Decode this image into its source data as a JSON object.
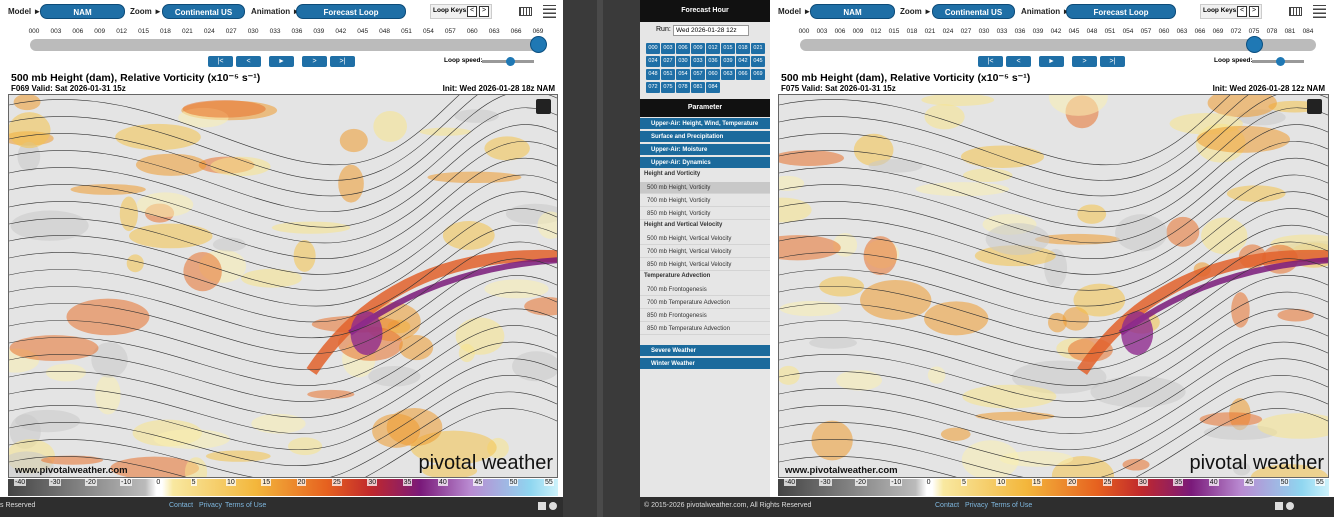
{
  "left": {
    "toolbar": {
      "model_label": "Model ►",
      "model": "NAM",
      "zoom_label": "Zoom ►",
      "zoom": "Continental US",
      "animation_label": "Animation ►",
      "animation": "Forecast Loop",
      "loop_keys": "Loop Keys:",
      "key_prev": "<",
      "key_next": ">"
    },
    "hours": [
      "000",
      "003",
      "006",
      "009",
      "012",
      "015",
      "018",
      "021",
      "024",
      "027",
      "030",
      "033",
      "036",
      "039",
      "042",
      "045",
      "048",
      "051",
      "054",
      "057",
      "060",
      "063",
      "066",
      "069"
    ],
    "selected_hour": "069",
    "buttons": [
      "|<",
      "<",
      "►",
      ">",
      ">|"
    ],
    "loop_speed": "Loop speed:",
    "title": "500 mb Height (dam), Relative Vorticity (x10⁻⁵ s⁻¹)",
    "valid": "F069 Valid: Sat 2026-01-31 15z",
    "init": "Init: Wed 2026-01-28 18z NAM",
    "site": "www.pivotalweather.com",
    "brand": "pivotal weather",
    "colorbar": [
      -40,
      -30,
      -20,
      -10,
      0,
      5,
      10,
      15,
      20,
      25,
      30,
      35,
      40,
      45,
      50,
      55
    ],
    "footer": {
      "copyright": "s Reserved",
      "links": [
        "Contact",
        "Privacy",
        "Terms of Use"
      ]
    }
  },
  "right": {
    "toolbar": {
      "model_label": "Model ►",
      "model": "NAM",
      "zoom_label": "Zoom ►",
      "zoom": "Continental US",
      "animation_label": "Animation ►",
      "animation": "Forecast Loop",
      "loop_keys": "Loop Keys:",
      "key_prev": "<",
      "key_next": ">"
    },
    "hours": [
      "000",
      "003",
      "006",
      "009",
      "012",
      "015",
      "018",
      "021",
      "024",
      "027",
      "030",
      "033",
      "036",
      "039",
      "042",
      "045",
      "048",
      "051",
      "054",
      "057",
      "060",
      "063",
      "066",
      "069",
      "072",
      "075",
      "078",
      "081",
      "084"
    ],
    "selected_hour": "075",
    "buttons": [
      "|<",
      "<",
      "►",
      ">",
      ">|"
    ],
    "loop_speed": "Loop speed:",
    "title": "500 mb Height (dam), Relative Vorticity (x10⁻⁵ s⁻¹)",
    "valid": "F075 Valid: Sat 2026-01-31 15z",
    "init": "Init: Wed 2026-01-28 12z NAM",
    "site": "www.pivotalweather.com",
    "brand": "pivotal weather",
    "colorbar": [
      -40,
      -30,
      -20,
      -10,
      0,
      5,
      10,
      15,
      20,
      25,
      30,
      35,
      40,
      45,
      50,
      55
    ],
    "footer": {
      "copyright": "© 2015-2026 pivotalweather.com, All Rights Reserved",
      "links": [
        "Contact",
        "Privacy",
        "Terms of Use"
      ]
    },
    "sidebar": {
      "forecast_hour": "Forecast Hour",
      "run_label": "Run:",
      "run": "Wed 2026-01-28 12z",
      "parameter": "Parameter",
      "sections": [
        "Upper-Air: Height, Wind, Temperature",
        "Surface and Precipitation",
        "Upper-Air: Moisture",
        "Upper-Air: Dynamics"
      ],
      "groups": [
        {
          "name": "Height and Vorticity",
          "items": [
            "500 mb Height, Vorticity",
            "700 mb Height, Vorticity",
            "850 mb Height, Vorticity"
          ]
        },
        {
          "name": "Height and Vertical Velocity",
          "items": [
            "500 mb Height, Vertical Velocity",
            "700 mb Height, Vertical Velocity",
            "850 mb Height, Vertical Velocity"
          ]
        },
        {
          "name": "Temperature Advection",
          "items": [
            "700 mb Frontogenesis",
            "700 mb Temperature Advection",
            "850 mb Frontogenesis",
            "850 mb Temperature Advection"
          ]
        }
      ],
      "more_sections": [
        "Severe Weather",
        "Winter Weather"
      ]
    }
  }
}
